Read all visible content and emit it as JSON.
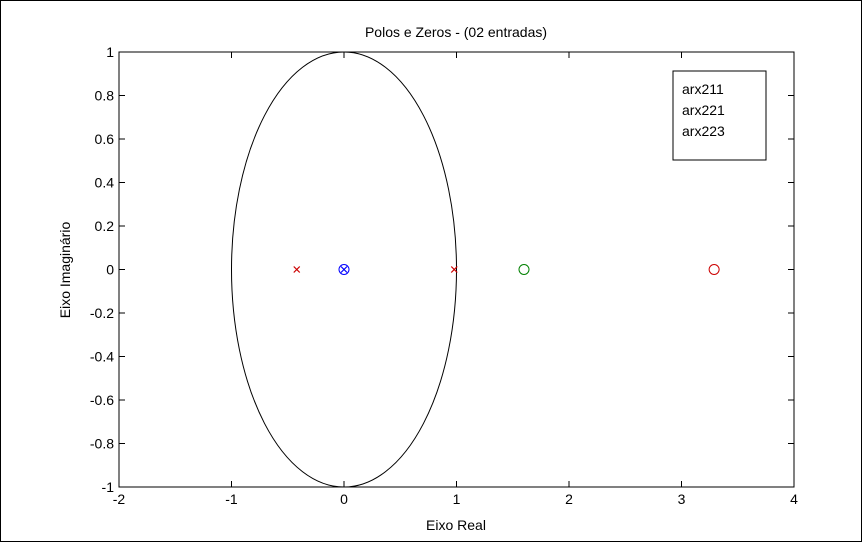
{
  "chart_data": {
    "type": "scatter",
    "title": "Polos e Zeros - (02 entradas)",
    "xlabel": "Eixo Real",
    "ylabel": "Eixo Imaginário",
    "xlim": [
      -2,
      4
    ],
    "ylim": [
      -1,
      1
    ],
    "xticks": [
      -2,
      -1,
      0,
      1,
      2,
      3,
      4
    ],
    "xtick_labels": [
      "-2",
      "-1",
      "0",
      "1",
      "2",
      "3",
      "4"
    ],
    "yticks": [
      -1,
      -0.8,
      -0.6,
      -0.4,
      -0.2,
      0,
      0.2,
      0.4,
      0.6,
      0.8,
      1
    ],
    "ytick_labels": [
      "-1",
      "-0.8",
      "-0.6",
      "-0.4",
      "-0.2",
      "0",
      "0.2",
      "0.4",
      "0.6",
      "0.8",
      "1"
    ],
    "grid": false,
    "legend_position": "top-right",
    "legend": [
      "arx211",
      "arx221",
      "arx223"
    ],
    "unit_circle": true,
    "series": [
      {
        "name": "arx211",
        "color": "#0000ff",
        "poles": [
          {
            "x": 0.0,
            "y": 0
          }
        ],
        "zeros": [
          {
            "x": 0.0,
            "y": 0
          }
        ]
      },
      {
        "name": "arx221",
        "color": "#008000",
        "poles": [],
        "zeros": [
          {
            "x": 1.6,
            "y": 0
          }
        ]
      },
      {
        "name": "arx223",
        "color": "#cc0000",
        "poles": [
          {
            "x": -0.42,
            "y": 0
          },
          {
            "x": 0.98,
            "y": 0
          }
        ],
        "zeros": [
          {
            "x": 3.29,
            "y": 0
          }
        ]
      }
    ]
  }
}
